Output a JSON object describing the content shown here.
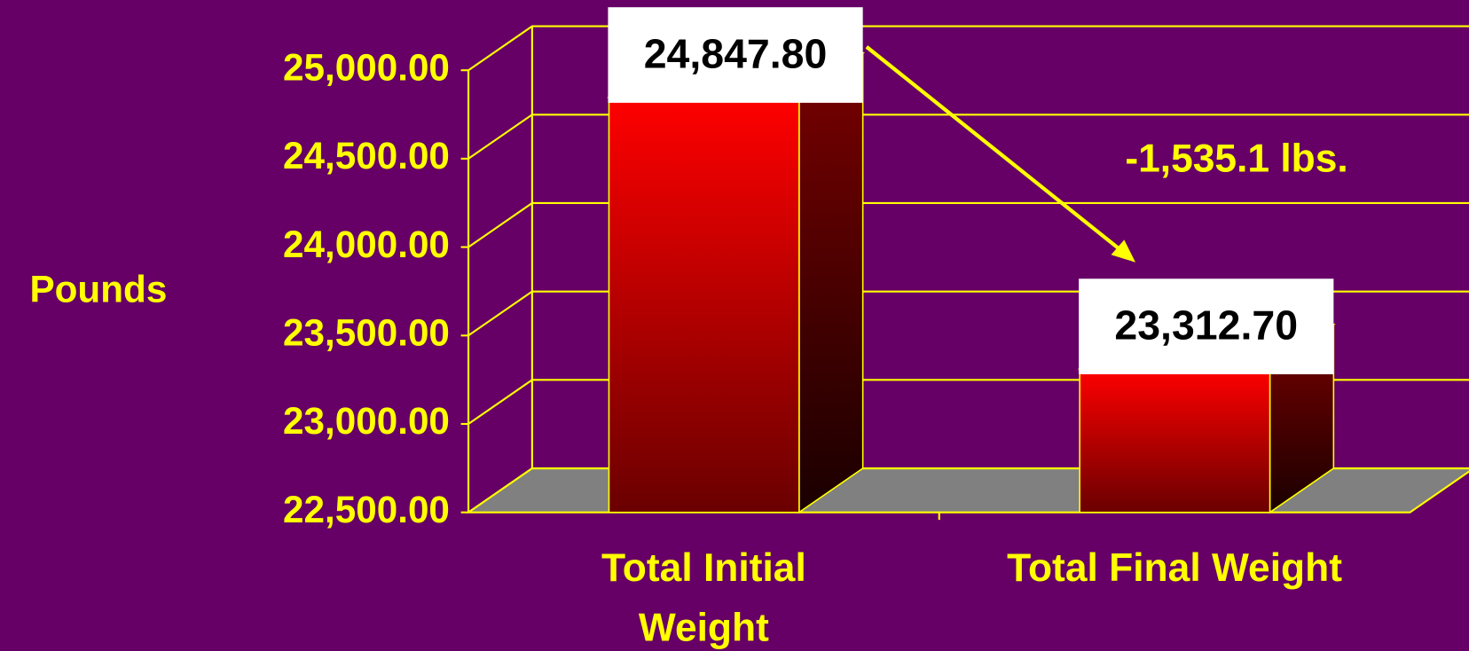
{
  "chart_data": {
    "type": "bar3d",
    "y_label": "Pounds",
    "categories": [
      "Total Initial Weight",
      "Total Final Weight"
    ],
    "values": [
      24847.8,
      23312.7
    ],
    "value_labels": [
      "24,847.80",
      "23,312.70"
    ],
    "color": "#ff0000",
    "ylim": [
      22500,
      25000
    ],
    "yticks": [
      {
        "value": 22500,
        "label": "22,500.00"
      },
      {
        "value": 23000,
        "label": "23,000.00"
      },
      {
        "value": 23500,
        "label": "23,500.00"
      },
      {
        "value": 24000,
        "label": "24,000.00"
      },
      {
        "value": 24500,
        "label": "24,500.00"
      },
      {
        "value": 25000,
        "label": "25,000.00"
      }
    ],
    "grid": true,
    "annotation": "-1,535.1 lbs."
  }
}
